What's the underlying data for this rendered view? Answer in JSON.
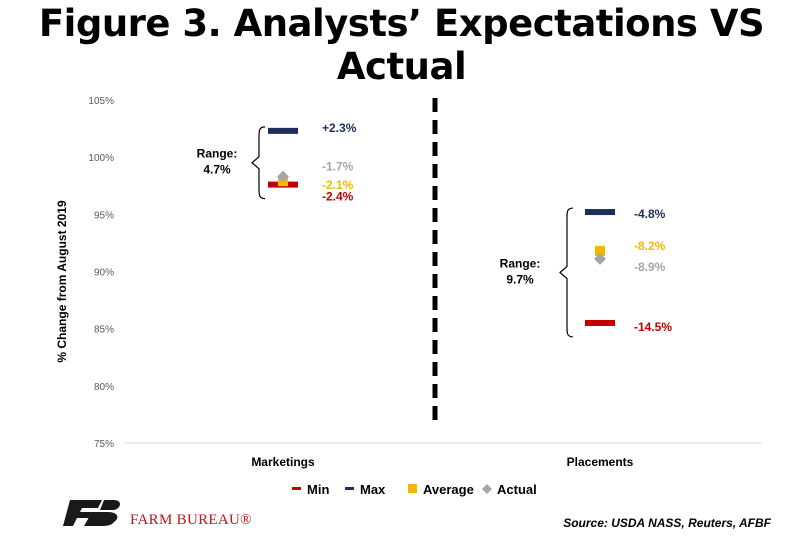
{
  "title": "Figure 3. Analysts’ Expectations VS Actual",
  "source": "Source:  USDA NASS, Reuters, AFBF",
  "logo": {
    "text": "FARM BUREAU®",
    "name": "farm-bureau-logo"
  },
  "colors": {
    "min": "#c00000",
    "max": "#1f2d5c",
    "average": "#f5b800",
    "actual": "#a6a6a6",
    "divider": "#000000"
  },
  "chart_data": {
    "type": "scatter",
    "ylabel": "% Change from August 2019",
    "ylim": [
      75,
      105
    ],
    "ytick_step": 5,
    "ytick_labels": [
      "75%",
      "80%",
      "85%",
      "90%",
      "95%",
      "100%",
      "105%"
    ],
    "categories": [
      "Marketings",
      "Placements"
    ],
    "legend": {
      "placement": "bottom",
      "entries": [
        "Min",
        "Max",
        "Average",
        "Actual"
      ]
    },
    "series": [
      {
        "name": "Min",
        "values": [
          97.6,
          85.5
        ],
        "labels": [
          "-2.4%",
          "-14.5%"
        ]
      },
      {
        "name": "Max",
        "values": [
          102.3,
          95.2
        ],
        "labels": [
          "+2.3%",
          "-4.8%"
        ]
      },
      {
        "name": "Average",
        "values": [
          97.9,
          91.8
        ],
        "labels": [
          "-2.1%",
          "-8.2%"
        ]
      },
      {
        "name": "Actual",
        "values": [
          98.3,
          91.1
        ],
        "labels": [
          "-1.7%",
          "-8.9%"
        ]
      }
    ],
    "range_annotations": [
      {
        "label_line1": "Range:",
        "label_line2": "4.7%"
      },
      {
        "label_line1": "Range:",
        "label_line2": "9.7%"
      }
    ]
  }
}
